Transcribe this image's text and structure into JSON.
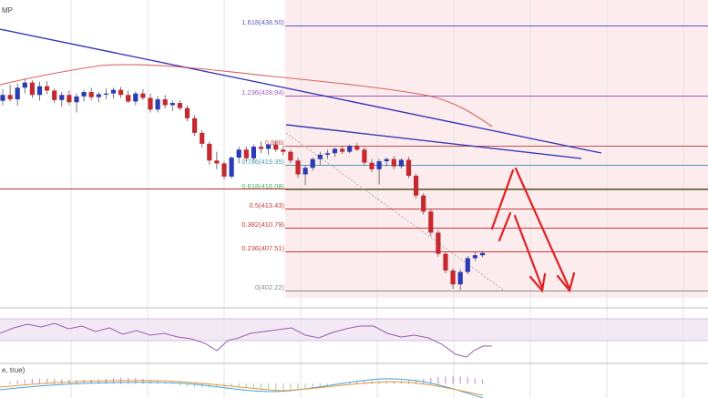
{
  "chart_data": {
    "type": "candlestick",
    "symbol_fragment": "MP",
    "indicator_label": "e, true)",
    "y_unit": "price",
    "fib_levels": [
      {
        "ratio": "1.618",
        "value": 438.5
      },
      {
        "ratio": "1.236",
        "value": 428.94
      },
      {
        "ratio": "0.886",
        "value": 422.0
      },
      {
        "ratio": "0.786",
        "value": 419.35
      },
      {
        "ratio": "0.618",
        "value": 416.08
      },
      {
        "ratio": "0.5",
        "value": 413.43
      },
      {
        "ratio": "0.382",
        "value": 410.79
      },
      {
        "ratio": "0.236",
        "value": 407.51
      },
      {
        "ratio": "0",
        "value": 402.22
      }
    ],
    "fib_label_texts": [
      "1.618(438.50)",
      "1.236(428.94)",
      "0.886(",
      "0.786(419.35)",
      "0.618(416.08)",
      "0.5(413.43)",
      "0.382(410.79)",
      "0.236(407.51)",
      "0(402.22)"
    ],
    "horizontal_line": 416.1,
    "candles": [
      [
        428.2,
        429.8,
        427.6,
        429.0
      ],
      [
        429.0,
        430.4,
        428.1,
        428.4
      ],
      [
        428.4,
        430.6,
        427.5,
        430.0
      ],
      [
        430.0,
        431.2,
        429.2,
        430.7
      ],
      [
        430.7,
        431.0,
        428.6,
        429.0
      ],
      [
        429.0,
        430.8,
        428.2,
        430.2
      ],
      [
        430.2,
        430.9,
        429.1,
        429.6
      ],
      [
        429.6,
        429.9,
        427.9,
        428.3
      ],
      [
        428.3,
        429.4,
        427.4,
        429.0
      ],
      [
        429.0,
        429.6,
        427.6,
        428.0
      ],
      [
        428.0,
        429.2,
        426.6,
        428.8
      ],
      [
        428.8,
        429.7,
        428.1,
        429.4
      ],
      [
        429.4,
        430.0,
        428.3,
        428.7
      ],
      [
        428.7,
        429.4,
        428.0,
        429.1
      ],
      [
        429.1,
        429.9,
        428.4,
        429.2
      ],
      [
        429.2,
        430.0,
        428.5,
        429.7
      ],
      [
        429.7,
        430.1,
        428.6,
        429.0
      ],
      [
        429.0,
        429.6,
        427.9,
        428.1
      ],
      [
        428.1,
        429.5,
        427.6,
        429.2
      ],
      [
        429.2,
        429.8,
        428.3,
        428.6
      ],
      [
        428.6,
        429.2,
        426.6,
        427.0
      ],
      [
        427.0,
        428.8,
        426.6,
        428.4
      ],
      [
        428.4,
        429.0,
        427.2,
        427.6
      ],
      [
        427.6,
        428.2,
        426.8,
        427.9
      ],
      [
        427.9,
        428.3,
        426.9,
        427.2
      ],
      [
        427.2,
        427.6,
        425.4,
        425.8
      ],
      [
        425.8,
        426.2,
        423.4,
        423.8
      ],
      [
        423.8,
        424.2,
        421.8,
        422.3
      ],
      [
        422.3,
        422.6,
        419.4,
        420.0
      ],
      [
        420.0,
        421.2,
        418.8,
        419.6
      ],
      [
        419.6,
        419.9,
        417.4,
        417.8
      ],
      [
        417.8,
        420.6,
        417.5,
        420.4
      ],
      [
        420.4,
        421.9,
        419.6,
        421.5
      ],
      [
        421.5,
        421.9,
        419.8,
        420.3
      ],
      [
        420.3,
        422.2,
        420.0,
        421.9
      ],
      [
        421.9,
        422.6,
        421.0,
        421.6
      ],
      [
        421.6,
        422.3,
        420.8,
        422.2
      ],
      [
        422.2,
        422.6,
        421.2,
        421.5
      ],
      [
        421.5,
        422.0,
        420.7,
        421.2
      ],
      [
        421.2,
        421.5,
        419.6,
        420.0
      ],
      [
        420.0,
        420.4,
        417.6,
        418.1
      ],
      [
        418.1,
        419.4,
        416.6,
        419.0
      ],
      [
        419.0,
        420.4,
        418.6,
        420.2
      ],
      [
        420.2,
        421.2,
        419.4,
        420.8
      ],
      [
        420.8,
        421.5,
        420.2,
        421.0
      ],
      [
        421.0,
        421.8,
        420.5,
        421.6
      ],
      [
        421.6,
        422.0,
        420.9,
        421.2
      ],
      [
        421.2,
        422.2,
        421.0,
        422.0
      ],
      [
        422.0,
        422.4,
        421.3,
        421.5
      ],
      [
        421.5,
        421.8,
        419.3,
        419.7
      ],
      [
        419.7,
        420.2,
        418.4,
        418.8
      ],
      [
        418.8,
        420.2,
        416.7,
        419.9
      ],
      [
        419.9,
        420.4,
        419.2,
        420.2
      ],
      [
        420.2,
        420.6,
        418.8,
        419.2
      ],
      [
        419.2,
        420.3,
        418.9,
        420.1
      ],
      [
        420.1,
        420.5,
        417.6,
        417.9
      ],
      [
        417.9,
        418.2,
        414.8,
        415.2
      ],
      [
        415.2,
        415.5,
        412.6,
        413.0
      ],
      [
        413.0,
        413.3,
        409.6,
        410.1
      ],
      [
        410.1,
        410.4,
        406.8,
        407.2
      ],
      [
        407.2,
        407.5,
        404.5,
        404.9
      ],
      [
        404.9,
        405.2,
        402.4,
        403.0
      ],
      [
        403.0,
        405.1,
        402.2,
        404.7
      ],
      [
        404.7,
        406.9,
        404.4,
        406.6
      ],
      [
        406.6,
        407.4,
        406.2,
        407.0
      ],
      [
        407.0,
        407.6,
        406.7,
        407.3
      ]
    ]
  }
}
